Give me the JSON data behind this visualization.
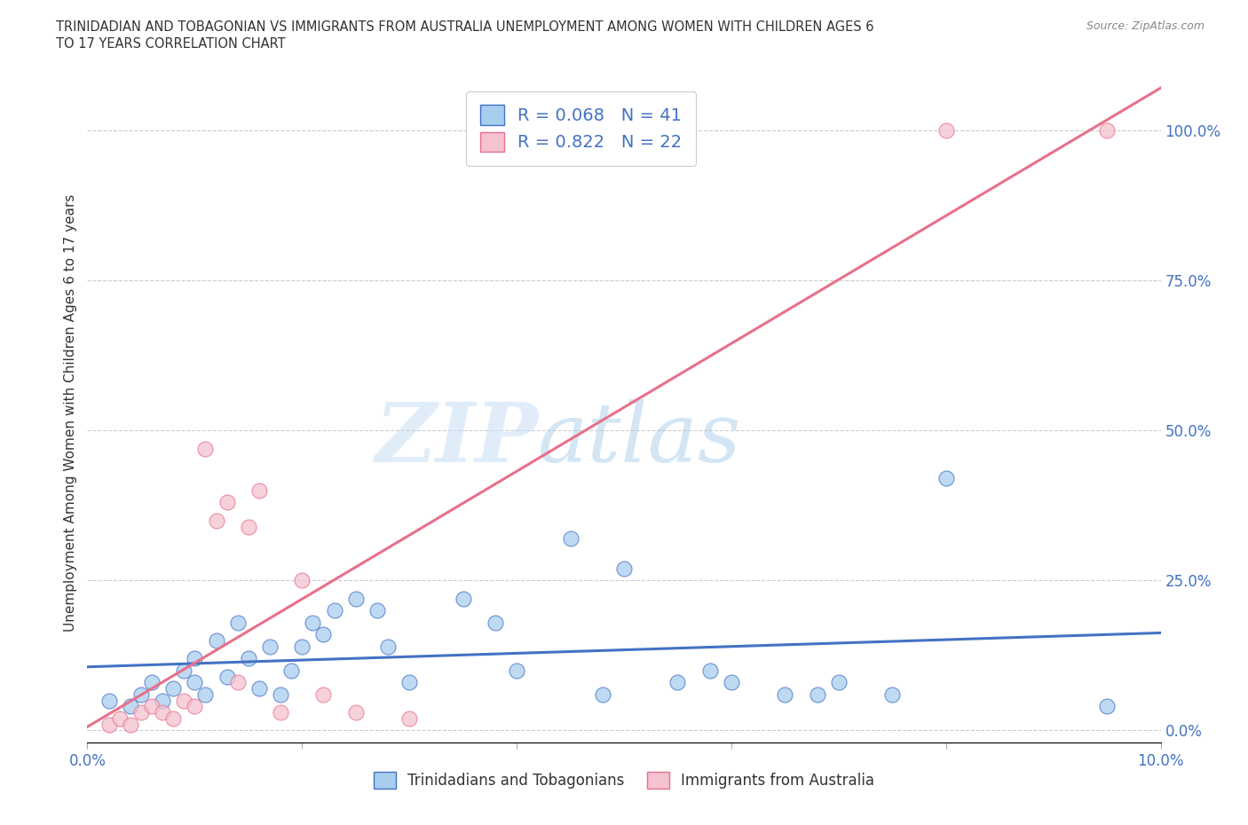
{
  "title_line1": "TRINIDADIAN AND TOBAGONIAN VS IMMIGRANTS FROM AUSTRALIA UNEMPLOYMENT AMONG WOMEN WITH CHILDREN AGES 6",
  "title_line2": "TO 17 YEARS CORRELATION CHART",
  "source": "Source: ZipAtlas.com",
  "ylabel": "Unemployment Among Women with Children Ages 6 to 17 years",
  "xlim": [
    0.0,
    0.1
  ],
  "ylim": [
    -0.02,
    1.08
  ],
  "xticks": [
    0.0,
    0.02,
    0.04,
    0.06,
    0.08,
    0.1
  ],
  "xtick_labels": [
    "0.0%",
    "",
    "",
    "",
    "",
    "10.0%"
  ],
  "yticks_right": [
    0.0,
    0.25,
    0.5,
    0.75,
    1.0
  ],
  "ytick_labels_right": [
    "0.0%",
    "25.0%",
    "50.0%",
    "75.0%",
    "100.0%"
  ],
  "watermark_zip": "ZIP",
  "watermark_atlas": "atlas",
  "blue_color": "#A8CEEE",
  "blue_edge_color": "#4472C4",
  "pink_color": "#F4C2D0",
  "pink_edge_color": "#E8708A",
  "blue_line_color": "#4472C4",
  "pink_line_color": "#E8708A",
  "legend_label_blue": "R = 0.068   N = 41",
  "legend_label_pink": "R = 0.822   N = 22",
  "legend_label_blue_bottom": "Trinidadians and Tobagonians",
  "legend_label_pink_bottom": "Immigrants from Australia",
  "blue_scatter_x": [
    0.002,
    0.004,
    0.005,
    0.006,
    0.007,
    0.008,
    0.009,
    0.01,
    0.01,
    0.011,
    0.012,
    0.013,
    0.014,
    0.015,
    0.016,
    0.017,
    0.018,
    0.019,
    0.02,
    0.021,
    0.022,
    0.023,
    0.025,
    0.027,
    0.028,
    0.03,
    0.035,
    0.038,
    0.04,
    0.045,
    0.048,
    0.05,
    0.055,
    0.058,
    0.06,
    0.065,
    0.068,
    0.07,
    0.075,
    0.08,
    0.095
  ],
  "blue_scatter_y": [
    0.05,
    0.04,
    0.06,
    0.08,
    0.05,
    0.07,
    0.1,
    0.08,
    0.12,
    0.06,
    0.15,
    0.09,
    0.18,
    0.12,
    0.07,
    0.14,
    0.06,
    0.1,
    0.14,
    0.18,
    0.16,
    0.2,
    0.22,
    0.2,
    0.14,
    0.08,
    0.22,
    0.18,
    0.1,
    0.32,
    0.06,
    0.27,
    0.08,
    0.1,
    0.08,
    0.06,
    0.06,
    0.08,
    0.06,
    0.42,
    0.04
  ],
  "pink_scatter_x": [
    0.002,
    0.003,
    0.004,
    0.005,
    0.006,
    0.007,
    0.008,
    0.009,
    0.01,
    0.011,
    0.012,
    0.013,
    0.014,
    0.015,
    0.016,
    0.018,
    0.02,
    0.022,
    0.025,
    0.03,
    0.08,
    0.095
  ],
  "pink_scatter_y": [
    0.01,
    0.02,
    0.01,
    0.03,
    0.04,
    0.03,
    0.02,
    0.05,
    0.04,
    0.47,
    0.35,
    0.38,
    0.08,
    0.34,
    0.4,
    0.03,
    0.25,
    0.06,
    0.03,
    0.02,
    1.0,
    1.0
  ],
  "background_color": "#ffffff",
  "grid_color": "#cccccc"
}
